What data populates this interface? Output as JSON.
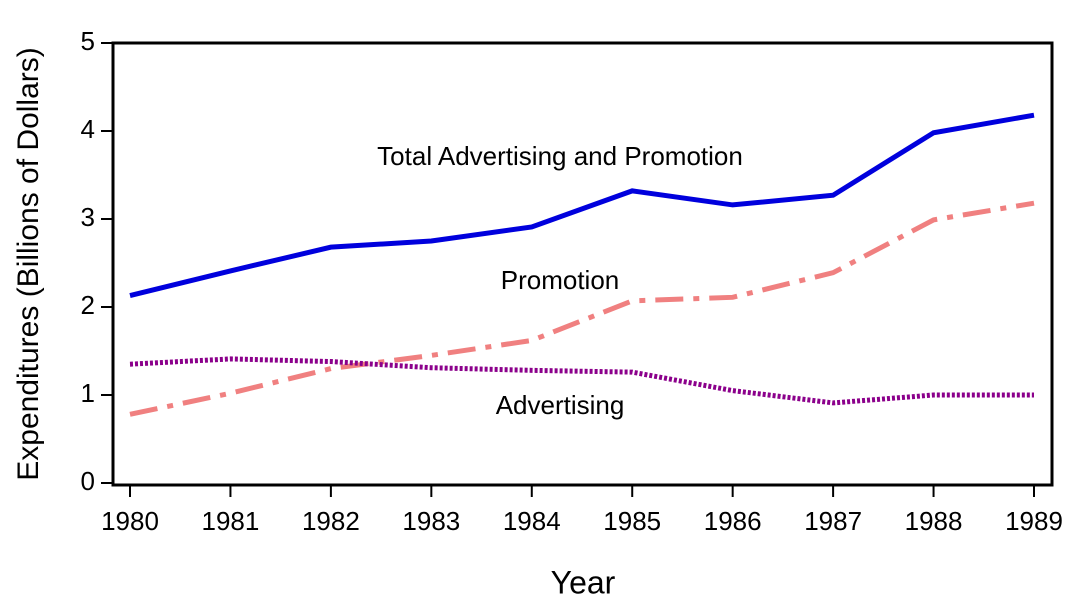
{
  "chart_data": {
    "type": "line",
    "x_label": "Year",
    "y_label": "Expenditures (Billions of Dollars)",
    "x": [
      1980,
      1981,
      1982,
      1983,
      1984,
      1985,
      1986,
      1987,
      1988,
      1989
    ],
    "series": [
      {
        "name": "Total Advertising and Promotion",
        "color": "#0000dd",
        "style": "solid",
        "values": [
          2.13,
          2.41,
          2.68,
          2.75,
          2.91,
          3.32,
          3.16,
          3.27,
          3.98,
          4.18
        ]
      },
      {
        "name": "Promotion",
        "color": "#f08080",
        "style": "dashdot",
        "values": [
          0.78,
          1.02,
          1.3,
          1.45,
          1.62,
          2.07,
          2.11,
          2.39,
          2.99,
          3.18
        ]
      },
      {
        "name": "Advertising",
        "color": "#8b008b",
        "style": "dotted",
        "values": [
          1.35,
          1.41,
          1.38,
          1.31,
          1.28,
          1.26,
          1.05,
          0.91,
          1.0,
          1.0
        ]
      }
    ],
    "xlim": [
      1980,
      1989
    ],
    "xticks": [
      1980,
      1981,
      1982,
      1983,
      1984,
      1985,
      1986,
      1987,
      1988,
      1989
    ],
    "ylim": [
      0,
      5
    ],
    "yticks": [
      0,
      1,
      2,
      3,
      4,
      5
    ]
  }
}
